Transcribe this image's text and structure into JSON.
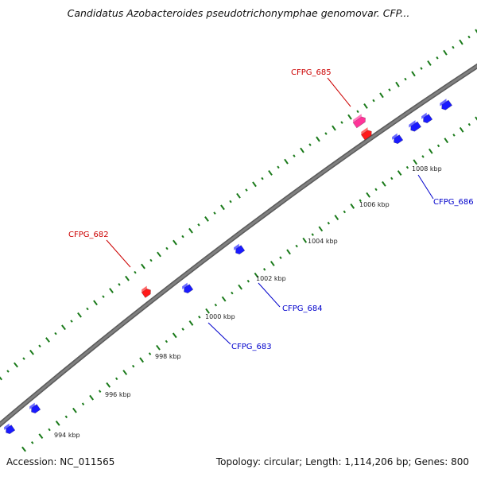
{
  "title": "Candidatus Azobacteroides pseudotrichonymphae genomovar. CFP...",
  "footer": {
    "accession": "Accession: NC_011565",
    "topology": "Topology: circular; Length: 1,114,206 bp; Genes: 800"
  },
  "scale": {
    "tick_labels": [
      {
        "kbp": 994,
        "text": "994 kbp"
      },
      {
        "kbp": 996,
        "text": "996 kbp"
      },
      {
        "kbp": 998,
        "text": "998 kbp"
      },
      {
        "kbp": 1000,
        "text": "1000 kbp"
      },
      {
        "kbp": 1002,
        "text": "1002 kbp"
      },
      {
        "kbp": 1004,
        "text": "1004 kbp"
      },
      {
        "kbp": 1006,
        "text": "1006 kbp"
      },
      {
        "kbp": 1008,
        "text": "1008 kbp"
      }
    ]
  },
  "gene_labels": [
    {
      "text": "CFPG_685",
      "strand": "forward",
      "color": "#cc0000"
    },
    {
      "text": "CFPG_682",
      "strand": "forward",
      "color": "#cc0000"
    },
    {
      "text": "CFPG_686",
      "strand": "reverse",
      "color": "#0000cc"
    },
    {
      "text": "CFPG_684",
      "strand": "reverse",
      "color": "#0000cc"
    },
    {
      "text": "CFPG_683",
      "strand": "reverse",
      "color": "#0000cc"
    }
  ],
  "colors": {
    "forward_gene": "#ff1a1a",
    "reverse_gene": "#1a1aff",
    "highlight_gene": "#ff3399",
    "backbone": "#808080",
    "tick": "#1a7a1a"
  }
}
